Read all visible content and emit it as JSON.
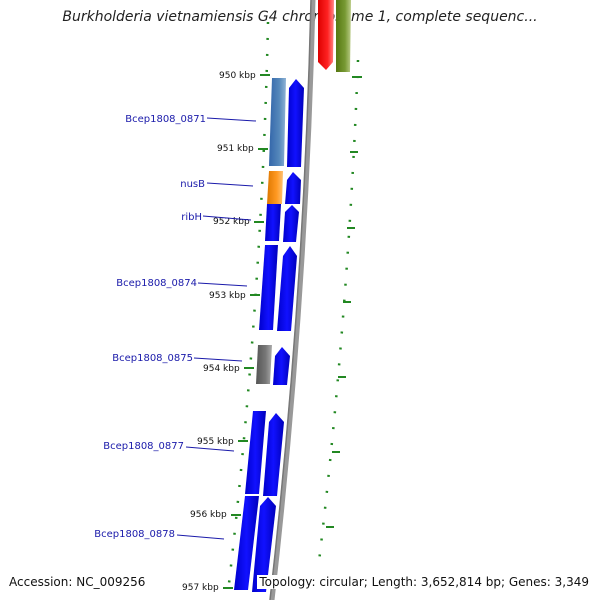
{
  "title": "Burkholderia vietnamiensis G4 chromosome 1, complete sequenc...",
  "footer": {
    "accession": "Accession: NC_009256",
    "summary": "Topology: circular; Length: 3,652,814 bp; Genes: 3,349"
  },
  "ticks": [
    {
      "label": "950 kbp"
    },
    {
      "label": "951 kbp"
    },
    {
      "label": "952 kbp"
    },
    {
      "label": "953 kbp"
    },
    {
      "label": "954 kbp"
    },
    {
      "label": "955 kbp"
    },
    {
      "label": "956 kbp"
    },
    {
      "label": "957 kbp"
    }
  ],
  "gene_labels": [
    {
      "label": "Bcep1808_0871"
    },
    {
      "label": "nusB"
    },
    {
      "label": "ribH"
    },
    {
      "label": "Bcep1808_0874"
    },
    {
      "label": "Bcep1808_0875"
    },
    {
      "label": "Bcep1808_0877"
    },
    {
      "label": "Bcep1808_0878"
    }
  ],
  "colors": {
    "cds": "#0000ee",
    "cds_steel": "#4477aa",
    "nusB": "#ee8800",
    "grey_feature": "#666666",
    "backbone": "#999999",
    "tick_green": "#228822",
    "label_blue": "#1a1aaa",
    "red_feature": "#ee0000",
    "olive_feature": "#668822"
  }
}
